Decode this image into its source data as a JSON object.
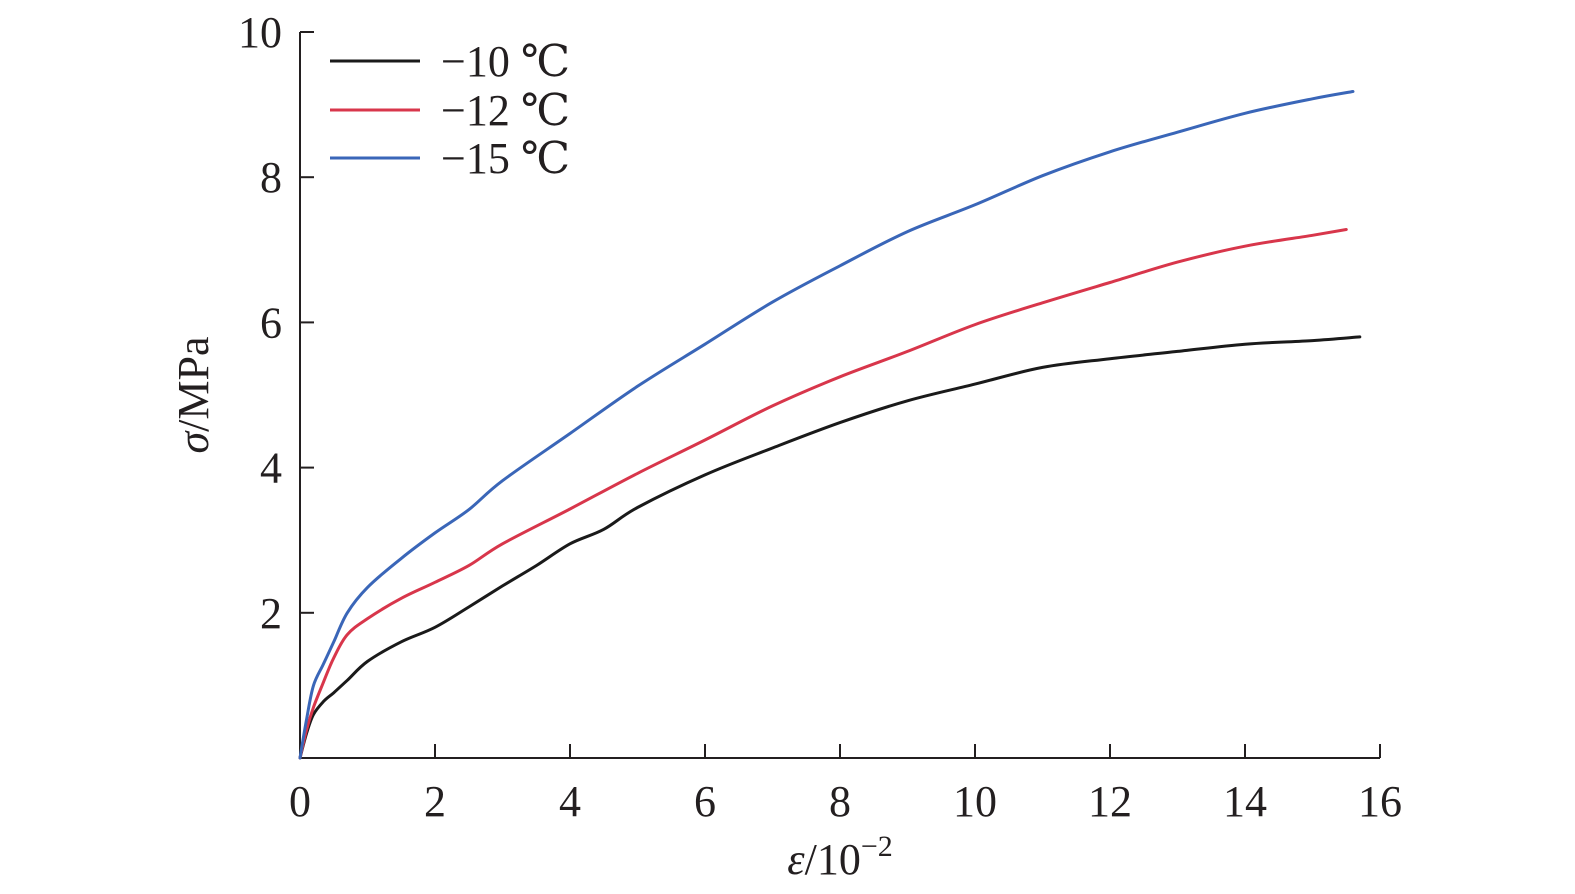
{
  "chart_data": {
    "type": "line",
    "title": "",
    "xlabel": "ε/10",
    "xlabel_exponent": "−2",
    "ylabel": "σ/MPa",
    "xlim": [
      0,
      16
    ],
    "ylim": [
      0,
      10
    ],
    "x_ticks": [
      0,
      2,
      4,
      6,
      8,
      10,
      12,
      14,
      16
    ],
    "x_tick_labels": [
      "0",
      "2",
      "4",
      "6",
      "8",
      "10",
      "12",
      "14",
      "16"
    ],
    "y_ticks": [
      2,
      4,
      6,
      8,
      10
    ],
    "y_tick_labels": [
      "2",
      "4",
      "6",
      "8",
      "10"
    ],
    "grid": false,
    "legend_position": "top-left",
    "series": [
      {
        "name": "−10 ℃",
        "color": "#1a1a1a",
        "points": [
          [
            0,
            0
          ],
          [
            0.1,
            0.35
          ],
          [
            0.2,
            0.6
          ],
          [
            0.35,
            0.78
          ],
          [
            0.5,
            0.9
          ],
          [
            0.7,
            1.07
          ],
          [
            1,
            1.33
          ],
          [
            1.5,
            1.6
          ],
          [
            2,
            1.8
          ],
          [
            2.5,
            2.08
          ],
          [
            3,
            2.37
          ],
          [
            3.5,
            2.65
          ],
          [
            4,
            2.95
          ],
          [
            4.5,
            3.15
          ],
          [
            5,
            3.45
          ],
          [
            6,
            3.9
          ],
          [
            7,
            4.27
          ],
          [
            8,
            4.62
          ],
          [
            9,
            4.92
          ],
          [
            10,
            5.15
          ],
          [
            11,
            5.38
          ],
          [
            12,
            5.5
          ],
          [
            13,
            5.6
          ],
          [
            14,
            5.7
          ],
          [
            15,
            5.75
          ],
          [
            15.7,
            5.8
          ]
        ]
      },
      {
        "name": "−12 ℃",
        "color": "#d8364b",
        "points": [
          [
            0,
            0
          ],
          [
            0.1,
            0.4
          ],
          [
            0.2,
            0.7
          ],
          [
            0.35,
            1.05
          ],
          [
            0.5,
            1.38
          ],
          [
            0.7,
            1.7
          ],
          [
            1,
            1.92
          ],
          [
            1.5,
            2.2
          ],
          [
            2,
            2.42
          ],
          [
            2.5,
            2.65
          ],
          [
            3,
            2.95
          ],
          [
            4,
            3.43
          ],
          [
            5,
            3.92
          ],
          [
            6,
            4.38
          ],
          [
            7,
            4.85
          ],
          [
            8,
            5.25
          ],
          [
            9,
            5.6
          ],
          [
            10,
            5.97
          ],
          [
            11,
            6.27
          ],
          [
            12,
            6.55
          ],
          [
            13,
            6.83
          ],
          [
            14,
            7.05
          ],
          [
            15,
            7.2
          ],
          [
            15.5,
            7.28
          ]
        ]
      },
      {
        "name": "−15 ℃",
        "color": "#3a66b8",
        "points": [
          [
            0,
            0
          ],
          [
            0.1,
            0.55
          ],
          [
            0.2,
            1.0
          ],
          [
            0.35,
            1.3
          ],
          [
            0.5,
            1.6
          ],
          [
            0.7,
            2.0
          ],
          [
            1,
            2.35
          ],
          [
            1.5,
            2.75
          ],
          [
            2,
            3.1
          ],
          [
            2.5,
            3.42
          ],
          [
            3,
            3.82
          ],
          [
            4,
            4.47
          ],
          [
            5,
            5.12
          ],
          [
            6,
            5.7
          ],
          [
            7,
            6.28
          ],
          [
            8,
            6.78
          ],
          [
            9,
            7.25
          ],
          [
            10,
            7.62
          ],
          [
            11,
            8.02
          ],
          [
            12,
            8.35
          ],
          [
            13,
            8.62
          ],
          [
            14,
            8.88
          ],
          [
            15,
            9.08
          ],
          [
            15.6,
            9.18
          ]
        ]
      }
    ]
  }
}
